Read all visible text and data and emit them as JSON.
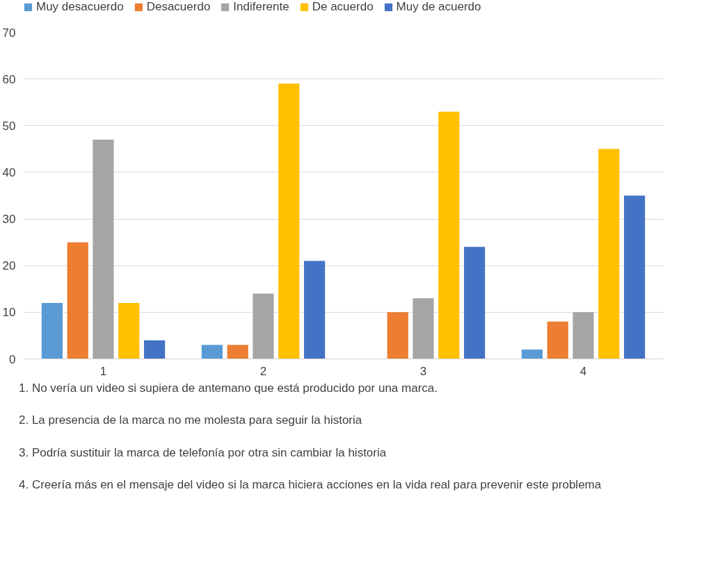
{
  "chart_data": {
    "type": "bar",
    "categories": [
      "1",
      "2",
      "3",
      "4"
    ],
    "series": [
      {
        "name": "Muy desacuerdo",
        "color": "#5b9bd5",
        "values": [
          12,
          3,
          0,
          2
        ]
      },
      {
        "name": "Desacuerdo",
        "color": "#ed7d31",
        "values": [
          25,
          3,
          10,
          8
        ]
      },
      {
        "name": "Indiferente",
        "color": "#a5a5a5",
        "values": [
          47,
          14,
          13,
          10
        ]
      },
      {
        "name": "De acuerdo",
        "color": "#ffc000",
        "values": [
          12,
          59,
          53,
          45
        ]
      },
      {
        "name": "Muy de acuerdo",
        "color": "#4472c4",
        "values": [
          4,
          21,
          24,
          35
        ]
      }
    ],
    "ylim": [
      0,
      70
    ],
    "yticks": [
      0,
      10,
      20,
      30,
      40,
      50,
      60,
      70
    ],
    "grid": "y",
    "legend": "top",
    "annotations": [
      "1.  No vería un video si supiera de antemano que está producido por una marca.",
      "2.  La presencia de la marca no me molesta para seguir la historia",
      "3.  Podría sustituir la marca de telefonía por otra sin cambiar la historia",
      "4.  Creería más en el mensaje del video si la marca hiciera acciones en la vida real para prevenir este problema"
    ]
  }
}
